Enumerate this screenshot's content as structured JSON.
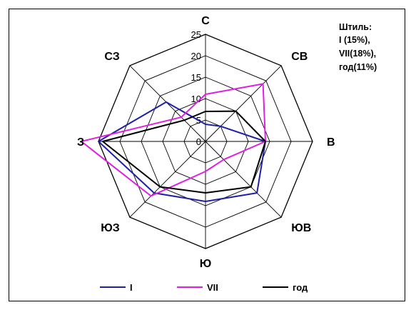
{
  "note": {
    "lines": [
      "Штиль:",
      "I (15%),",
      "VII(18%),",
      "год(11%)"
    ]
  },
  "chart_data": {
    "type": "radar",
    "categories": [
      "С",
      "СВ",
      "В",
      "ЮВ",
      "Ю",
      "ЮЗ",
      "З",
      "СЗ"
    ],
    "ticks": [
      "0",
      "5",
      "10",
      "15",
      "20",
      "25"
    ],
    "rlim": [
      0,
      25
    ],
    "series": [
      {
        "name": "I",
        "color": "#1f1fa8",
        "values": [
          4,
          5,
          14,
          17,
          14,
          17,
          25,
          13
        ]
      },
      {
        "name": "VII",
        "color": "#e020e0",
        "values": [
          11,
          19,
          14,
          6,
          7,
          18,
          29,
          8
        ]
      },
      {
        "name": "год",
        "color": "#000000",
        "values": [
          7,
          10,
          14,
          15,
          12,
          15,
          24,
          7
        ]
      }
    ]
  }
}
